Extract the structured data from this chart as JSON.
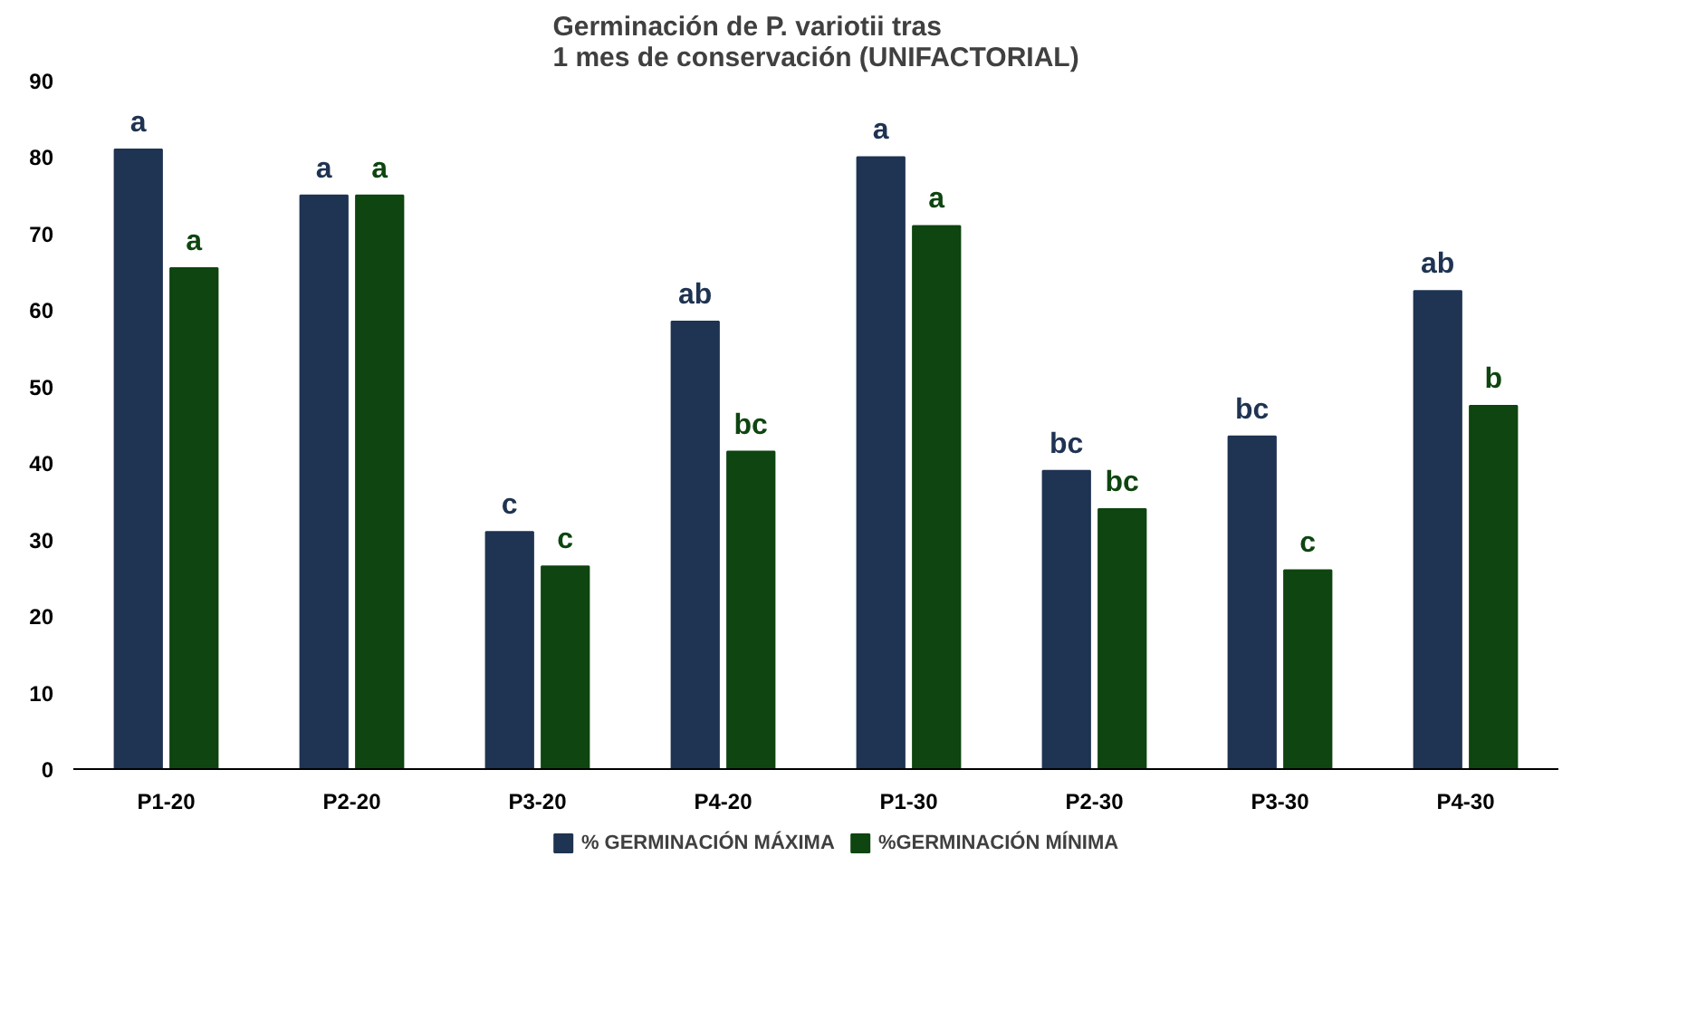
{
  "chart_data": {
    "type": "bar",
    "title": "Germinación de P. variotii tras\n1 mes de conservación (UNIFACTORIAL)",
    "categories": [
      "P1-20",
      "P2-20",
      "P3-20",
      "P4-20",
      "P1-30",
      "P2-30",
      "P3-30",
      "P4-30"
    ],
    "series": [
      {
        "name": "% GERMINACIÓN MÁXIMA",
        "color": "#1f3352",
        "values": [
          81,
          75,
          31,
          58.5,
          80,
          39,
          43.5,
          62.5
        ],
        "value_labels": [
          "a",
          "a",
          "c",
          "ab",
          "a",
          "bc",
          "bc",
          "ab"
        ]
      },
      {
        "name": "%GERMINACIÓN MÍNIMA",
        "color": "#0e4510",
        "values": [
          65.5,
          75,
          26.5,
          41.5,
          71,
          34,
          26,
          47.5
        ],
        "value_labels": [
          "a",
          "a",
          "c",
          "bc",
          "a",
          "bc",
          "c",
          "b"
        ]
      }
    ],
    "ylim": [
      0,
      90
    ],
    "yticks": [
      0,
      10,
      20,
      30,
      40,
      50,
      60,
      70,
      80,
      90
    ],
    "grid": false,
    "legend": "bottom"
  }
}
